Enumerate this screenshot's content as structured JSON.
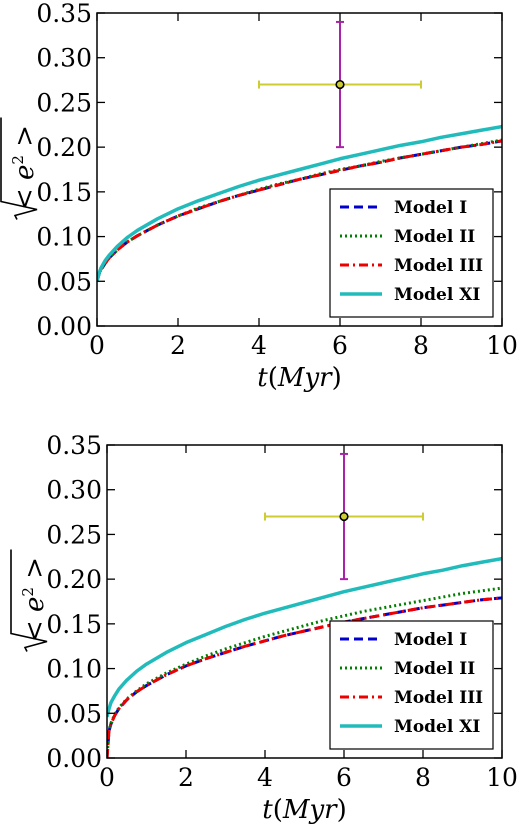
{
  "chart_data": [
    {
      "type": "line",
      "xlabel": {
        "pre": "t",
        "paren_open": "(",
        "unit": "Myr",
        "paren_close": ")"
      },
      "ylabel": {
        "root_open": "< e",
        "exp": "2",
        "root_close": " >"
      },
      "xlim": [
        0,
        10
      ],
      "ylim": [
        0,
        0.35
      ],
      "xticks": [
        "0",
        "2",
        "4",
        "6",
        "8",
        "10"
      ],
      "yticks": [
        "0.00",
        "0.05",
        "0.10",
        "0.15",
        "0.20",
        "0.25",
        "0.30",
        "0.35"
      ],
      "x": [
        0,
        0.05,
        0.1,
        0.2,
        0.3,
        0.5,
        0.75,
        1,
        1.5,
        2,
        2.5,
        3,
        3.5,
        4,
        4.5,
        5,
        5.5,
        6,
        6.5,
        7,
        7.5,
        8,
        8.5,
        9,
        9.5,
        10
      ],
      "series": [
        {
          "name": "Model I",
          "color": "#0000cc",
          "dash": "9,5",
          "width": 3,
          "values": [
            0.05,
            0.058,
            0.063,
            0.07,
            0.076,
            0.085,
            0.094,
            0.101,
            0.113,
            0.123,
            0.131,
            0.139,
            0.146,
            0.152,
            0.158,
            0.164,
            0.169,
            0.174,
            0.179,
            0.183,
            0.188,
            0.192,
            0.196,
            0.2,
            0.203,
            0.207
          ]
        },
        {
          "name": "Model II",
          "color": "#008000",
          "dash": "2,3",
          "width": 3,
          "values": [
            0.05,
            0.058,
            0.063,
            0.07,
            0.076,
            0.085,
            0.094,
            0.101,
            0.113,
            0.123,
            0.132,
            0.139,
            0.146,
            0.153,
            0.159,
            0.164,
            0.17,
            0.175,
            0.179,
            0.184,
            0.188,
            0.192,
            0.196,
            0.2,
            0.204,
            0.208
          ]
        },
        {
          "name": "Model III",
          "color": "#ee0000",
          "dash": "9,4,2,4",
          "width": 3,
          "values": [
            0.05,
            0.058,
            0.063,
            0.07,
            0.076,
            0.085,
            0.094,
            0.101,
            0.113,
            0.123,
            0.131,
            0.139,
            0.146,
            0.152,
            0.158,
            0.164,
            0.169,
            0.174,
            0.179,
            0.183,
            0.188,
            0.192,
            0.196,
            0.2,
            0.203,
            0.207
          ]
        },
        {
          "name": "Model XI",
          "color": "#22bbbb",
          "dash": "",
          "width": 3.5,
          "values": [
            0.05,
            0.059,
            0.065,
            0.073,
            0.079,
            0.089,
            0.099,
            0.107,
            0.12,
            0.131,
            0.14,
            0.148,
            0.156,
            0.163,
            0.169,
            0.175,
            0.181,
            0.187,
            0.192,
            0.197,
            0.202,
            0.206,
            0.211,
            0.215,
            0.219,
            0.223
          ]
        }
      ],
      "observation": {
        "x": 6,
        "y": 0.27,
        "xerr": 2,
        "yerr": 0.07,
        "xerr_color": "#cccc33",
        "yerr_color": "#aa22aa",
        "marker_color": "#cccc33"
      },
      "legend": {
        "placement": "lower-right"
      }
    },
    {
      "type": "line",
      "xlabel": {
        "pre": "t",
        "paren_open": "(",
        "unit": "Myr",
        "paren_close": ")"
      },
      "ylabel": {
        "root_open": "< e",
        "exp": "2",
        "root_close": " >"
      },
      "xlim": [
        0,
        10
      ],
      "ylim": [
        0,
        0.35
      ],
      "xticks": [
        "0",
        "2",
        "4",
        "6",
        "8",
        "10"
      ],
      "yticks": [
        "0.00",
        "0.05",
        "0.10",
        "0.15",
        "0.20",
        "0.25",
        "0.30",
        "0.35"
      ],
      "x": [
        0,
        0.05,
        0.1,
        0.2,
        0.3,
        0.5,
        0.75,
        1,
        1.5,
        2,
        2.5,
        3,
        3.5,
        4,
        4.5,
        5,
        5.5,
        6,
        6.5,
        7,
        7.5,
        8,
        8.5,
        9,
        9.5,
        10
      ],
      "series": [
        {
          "name": "Model I",
          "color": "#0000cc",
          "dash": "9,5",
          "width": 3,
          "values": [
            0,
            0.03,
            0.038,
            0.048,
            0.055,
            0.065,
            0.074,
            0.081,
            0.093,
            0.103,
            0.111,
            0.118,
            0.125,
            0.131,
            0.137,
            0.142,
            0.147,
            0.152,
            0.156,
            0.16,
            0.164,
            0.168,
            0.171,
            0.174,
            0.177,
            0.179
          ]
        },
        {
          "name": "Model II",
          "color": "#008000",
          "dash": "2,3",
          "width": 3,
          "values": [
            0,
            0.031,
            0.039,
            0.049,
            0.056,
            0.066,
            0.075,
            0.083,
            0.095,
            0.105,
            0.114,
            0.122,
            0.129,
            0.136,
            0.142,
            0.148,
            0.154,
            0.159,
            0.164,
            0.168,
            0.172,
            0.176,
            0.18,
            0.184,
            0.187,
            0.19
          ]
        },
        {
          "name": "Model III",
          "color": "#ee0000",
          "dash": "9,4,2,4",
          "width": 3,
          "values": [
            0,
            0.03,
            0.038,
            0.048,
            0.055,
            0.065,
            0.074,
            0.081,
            0.093,
            0.103,
            0.111,
            0.118,
            0.125,
            0.131,
            0.137,
            0.142,
            0.147,
            0.152,
            0.156,
            0.16,
            0.164,
            0.168,
            0.171,
            0.174,
            0.177,
            0.179
          ]
        },
        {
          "name": "Model XI",
          "color": "#22bbbb",
          "dash": "",
          "width": 3.5,
          "values": [
            0.046,
            0.055,
            0.062,
            0.07,
            0.077,
            0.087,
            0.097,
            0.105,
            0.118,
            0.129,
            0.138,
            0.147,
            0.155,
            0.162,
            0.168,
            0.174,
            0.18,
            0.186,
            0.191,
            0.196,
            0.201,
            0.206,
            0.21,
            0.215,
            0.219,
            0.223
          ]
        }
      ],
      "observation": {
        "x": 6,
        "y": 0.27,
        "xerr": 2,
        "yerr": 0.07,
        "xerr_color": "#cccc33",
        "yerr_color": "#aa22aa",
        "marker_color": "#cccc33"
      },
      "legend": {
        "placement": "lower-right"
      }
    }
  ]
}
